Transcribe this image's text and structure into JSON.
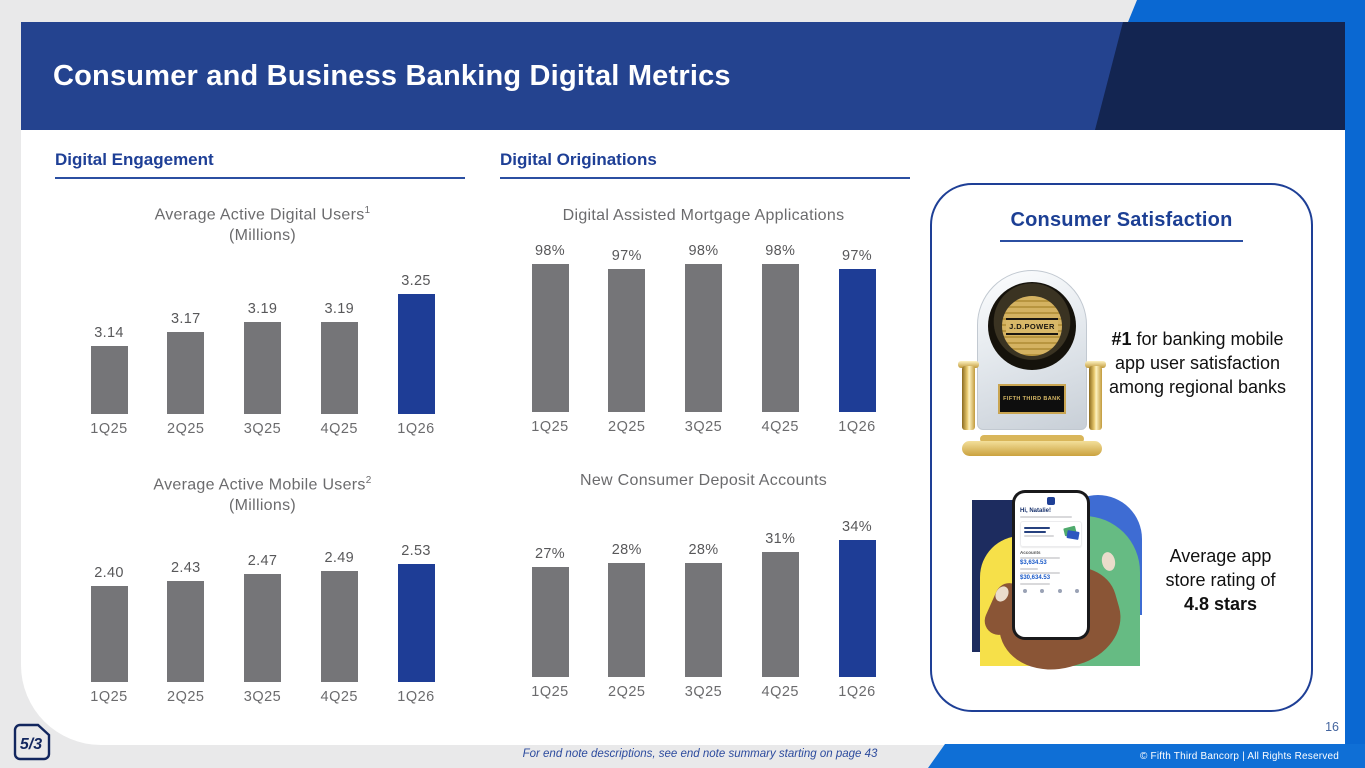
{
  "slide": {
    "title": "Consumer and Business Banking Digital Metrics",
    "page_number": "16",
    "footer_note": "For end note descriptions, see end note summary starting on page 43",
    "footer_copyright": "© Fifth Third Bancorp | All Rights Reserved",
    "logo_text": "5/3"
  },
  "sections": {
    "engagement_heading": "Digital Engagement",
    "originations_heading": "Digital Originations",
    "satisfaction_heading": "Consumer Satisfaction"
  },
  "satisfaction": {
    "award": {
      "medallion_text": "J.D.POWER",
      "plaque_text": "FIFTH THIRD BANK",
      "caption_strong": "#1",
      "caption_rest": " for banking mobile app user satisfaction among regional banks"
    },
    "app_rating": {
      "caption_prefix": "Average app store rating of ",
      "caption_strong": "4.8 stars",
      "phone": {
        "greeting": "Hi, Natalie!",
        "accounts_label": "Accounts",
        "balance1": "$3,634.53",
        "balance2": "$30,634.53"
      }
    }
  },
  "colors": {
    "banner_blue": "#24438F",
    "banner_dark": "#132551",
    "bright_blue": "#0A68D2",
    "heading_blue": "#1E3F96",
    "bar_gray": "#757578",
    "bar_blue": "#1E3D96"
  },
  "chart_data": [
    {
      "type": "bar",
      "title": "Average Active Digital Users",
      "title_superscript": "1",
      "subtitle": "(Millions)",
      "categories": [
        "1Q25",
        "2Q25",
        "3Q25",
        "4Q25",
        "1Q26"
      ],
      "values": [
        3.14,
        3.17,
        3.19,
        3.19,
        3.25
      ],
      "labels": [
        "3.14",
        "3.17",
        "3.19",
        "3.19",
        "3.25"
      ],
      "highlight_index": 4,
      "unit": "millions",
      "axis_hidden": true
    },
    {
      "type": "bar",
      "title": "Digital Assisted Mortgage Applications",
      "title_superscript": "",
      "subtitle": "",
      "categories": [
        "1Q25",
        "2Q25",
        "3Q25",
        "4Q25",
        "1Q26"
      ],
      "values": [
        98,
        97,
        98,
        98,
        97
      ],
      "labels": [
        "98%",
        "97%",
        "98%",
        "98%",
        "97%"
      ],
      "highlight_index": 4,
      "unit": "percent",
      "axis_hidden": true
    },
    {
      "type": "bar",
      "title": "Average Active Mobile Users",
      "title_superscript": "2",
      "subtitle": "(Millions)",
      "categories": [
        "1Q25",
        "2Q25",
        "3Q25",
        "4Q25",
        "1Q26"
      ],
      "values": [
        2.4,
        2.43,
        2.47,
        2.49,
        2.53
      ],
      "labels": [
        "2.40",
        "2.43",
        "2.47",
        "2.49",
        "2.53"
      ],
      "highlight_index": 4,
      "unit": "millions",
      "axis_hidden": true
    },
    {
      "type": "bar",
      "title": "New Consumer Deposit Accounts",
      "title_superscript": "",
      "subtitle": "",
      "categories": [
        "1Q25",
        "2Q25",
        "3Q25",
        "4Q25",
        "1Q26"
      ],
      "values": [
        27,
        28,
        28,
        31,
        34
      ],
      "labels": [
        "27%",
        "28%",
        "28%",
        "31%",
        "34%"
      ],
      "highlight_index": 4,
      "unit": "percent",
      "axis_hidden": true
    }
  ]
}
